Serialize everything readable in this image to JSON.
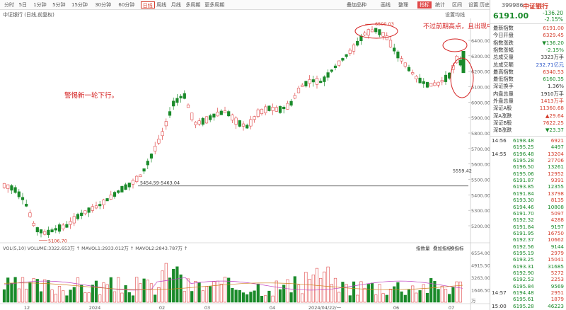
{
  "toolbar": {
    "periods": [
      "分时",
      "5日",
      "1分钟",
      "5分钟",
      "15分钟",
      "30分钟",
      "60分钟",
      "日线",
      "周线",
      "月线",
      "多周期",
      "更多周期"
    ],
    "active_index": 7,
    "right_buttons": [
      "叠加品种",
      "画线",
      "整理",
      "指标",
      "统计",
      "区间",
      "设置",
      "历史"
    ],
    "settings_label": "设置均线"
  },
  "subtitle": "中证银行 (日线,前复权)",
  "header": {
    "code": "399986",
    "name": "中证银行",
    "price": "6191.00",
    "change": "-136.20",
    "change_pct": "-2.15%"
  },
  "quote": [
    {
      "label": "最新指数",
      "value": "6191.00",
      "color": "red"
    },
    {
      "label": "今日开盘",
      "value": "6329.45",
      "color": "red"
    },
    {
      "label": "指数涨跌",
      "value": "▼136.20",
      "color": "green"
    },
    {
      "label": "指数涨幅",
      "value": "-2.15%",
      "color": "green"
    },
    {
      "label": "总成交量",
      "value": "3323万手",
      "color": "dark"
    },
    {
      "label": "总成交额",
      "value": "232.71亿元",
      "color": "blue"
    },
    {
      "label": "最高指数",
      "value": "6340.53",
      "color": "red"
    },
    {
      "label": "最低指数",
      "value": "6160.35",
      "color": "green"
    },
    {
      "label": "深证换手",
      "value": "1.36%",
      "color": "dark"
    },
    {
      "label": "内盘总量",
      "value": "1910万手",
      "color": "dark"
    },
    {
      "label": "外盘总量",
      "value": "1413万手",
      "color": "red"
    },
    {
      "label": "深证A股",
      "value": "11360.68",
      "color": "red"
    },
    {
      "label": "深A涨跌",
      "value": "▲29.64",
      "color": "red"
    },
    {
      "label": "深证B股",
      "value": "7622.25",
      "color": "red"
    },
    {
      "label": "深B涨跌",
      "value": "▼23.37",
      "color": "green"
    }
  ],
  "ticks": [
    {
      "time": "14:56",
      "price": "6198.48",
      "vol": "6921"
    },
    {
      "time": "",
      "price": "6195.25",
      "vol": "4497"
    },
    {
      "time": "14:55",
      "price": "6196.48",
      "vol": "13204"
    },
    {
      "time": "",
      "price": "6195.28",
      "vol": "27706"
    },
    {
      "time": "",
      "price": "6196.50",
      "vol": "13261"
    },
    {
      "time": "",
      "price": "6195.06",
      "vol": "12952"
    },
    {
      "time": "",
      "price": "6191.87",
      "vol": "9391"
    },
    {
      "time": "",
      "price": "6193.85",
      "vol": "12355"
    },
    {
      "time": "",
      "price": "6191.84",
      "vol": "13798"
    },
    {
      "time": "",
      "price": "6193.30",
      "vol": "8135"
    },
    {
      "time": "",
      "price": "6194.46",
      "vol": "10808"
    },
    {
      "time": "",
      "price": "6191.70",
      "vol": "5097"
    },
    {
      "time": "",
      "price": "6192.32",
      "vol": "4288"
    },
    {
      "time": "",
      "price": "6191.84",
      "vol": "9197"
    },
    {
      "time": "",
      "price": "6191.95",
      "vol": "16750"
    },
    {
      "time": "",
      "price": "6192.37",
      "vol": "10662"
    },
    {
      "time": "",
      "price": "6192.56",
      "vol": "9144"
    },
    {
      "time": "",
      "price": "6195.19",
      "vol": "2979"
    },
    {
      "time": "",
      "price": "6193.25",
      "vol": "15041"
    },
    {
      "time": "",
      "price": "6193.31",
      "vol": "31685"
    },
    {
      "time": "",
      "price": "6192.90",
      "vol": "5272"
    },
    {
      "time": "",
      "price": "6192.53",
      "vol": "2253"
    },
    {
      "time": "",
      "price": "6195.84",
      "vol": "9569"
    },
    {
      "time": "14:57",
      "price": "6194.48",
      "vol": "2951"
    },
    {
      "time": "",
      "price": "6195.61",
      "vol": "1879"
    },
    {
      "time": "15:00",
      "price": "6195.28",
      "vol": "46223"
    }
  ],
  "annotations": {
    "left_note": "警惕新一轮下行。",
    "top_note": "不过前期高点，且出现中大阴线，警惕回调。",
    "high_label": "6500.03",
    "low_label": "5106.70",
    "range_label": "5454.59-5463.04",
    "right_price_label": "5559.42"
  },
  "price_axis": [
    "6400.00",
    "6300.00",
    "6200.00",
    "6100.00",
    "6000.00",
    "5900.00",
    "5800.00",
    "5700.00",
    "5600.00",
    "5500.00",
    "5400.00",
    "5300.00",
    "5200.00"
  ],
  "volume_header": "VOL(5,10) VOLUME:3322.653万 ↑ MAVOL1:2933.012万 ↑ MAVOL2:2843.787万 ↑",
  "volume_axis": [
    "6554.00",
    "4915.50",
    "3263.00",
    "1646.50",
    "万"
  ],
  "volume_tools": [
    "指数量",
    "叠加指标",
    "换指标"
  ],
  "date_axis": [
    "12",
    "2024",
    "02",
    "03",
    "04",
    "2024/04/22/一",
    "06",
    "07"
  ]
}
